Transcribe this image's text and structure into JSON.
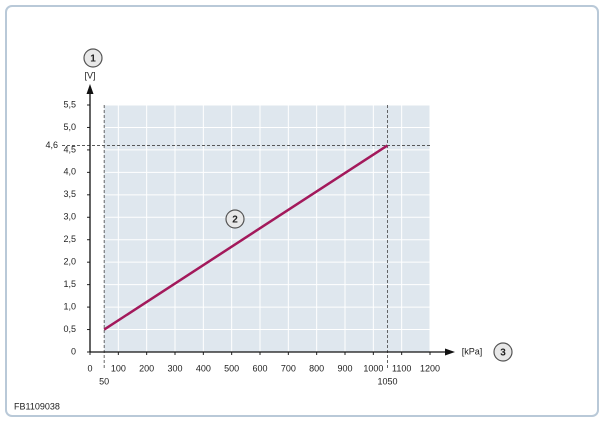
{
  "chart_data": {
    "type": "line",
    "x": [
      50,
      1050
    ],
    "series": [
      {
        "color": "#a3195b",
        "values": [
          0.5,
          4.6
        ]
      }
    ],
    "xlim": [
      0,
      1200
    ],
    "ylim": [
      0,
      5.5
    ],
    "xticks": [
      0,
      100,
      200,
      300,
      400,
      500,
      600,
      700,
      800,
      900,
      1000,
      1100,
      1200
    ],
    "yticks": [
      0,
      {
        "value": 0.5,
        "label": "0,5"
      },
      {
        "value": 1,
        "label": "1,0"
      },
      {
        "value": 1.5,
        "label": "1,5"
      },
      {
        "value": 2,
        "label": "2,0"
      },
      {
        "value": 2.5,
        "label": "2,5"
      },
      {
        "value": 3,
        "label": "3,0"
      },
      {
        "value": 3.5,
        "label": "3,5"
      },
      {
        "value": 4,
        "label": "4,0"
      },
      {
        "value": 4.5,
        "label": "4,5"
      },
      {
        "value": 5,
        "label": "5,0"
      },
      {
        "value": 5.5,
        "label": "5,5"
      }
    ],
    "y_label": "[V]",
    "x_label": "[kPa]",
    "x_reference": [
      50,
      1050
    ],
    "y_reference": [
      {
        "value": 4.6,
        "label": "4,6"
      }
    ],
    "callouts": [
      "1",
      "2",
      "3"
    ],
    "footer": "FB1109038",
    "grid": true
  }
}
